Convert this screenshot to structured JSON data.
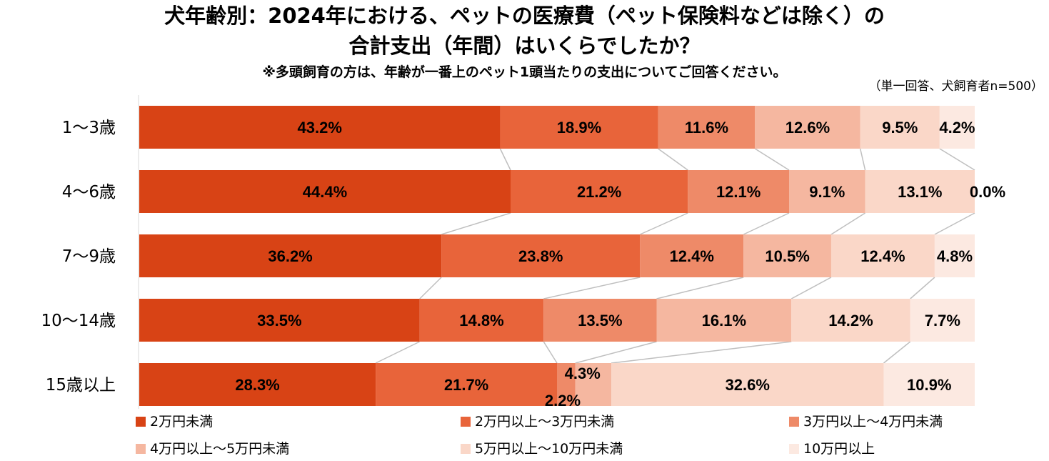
{
  "title_line1": "犬年齢別：2024年における、ペットの医療費（ペット保険料などは除く）の",
  "title_line2": "合計支出（年間）はいくらでしたか？",
  "subtitle": "※多頭飼育の方は、年齢が一番上のペット1頭当たりの支出についてご回答ください。",
  "note": "（単一回答、犬飼育者n=500）",
  "chart_data": {
    "type": "bar",
    "orientation": "horizontal",
    "stacked": "100%",
    "categories": [
      "1～3歳",
      "4～6歳",
      "7～9歳",
      "10～14歳",
      "15歳以上"
    ],
    "series": [
      {
        "name": "2万円未満",
        "color": "#D84315",
        "values": [
          43.2,
          44.4,
          36.2,
          33.5,
          28.3
        ]
      },
      {
        "name": "2万円以上～3万円未満",
        "color": "#E8643A",
        "values": [
          18.9,
          21.2,
          23.8,
          14.8,
          21.7
        ]
      },
      {
        "name": "3万円以上～4万円未満",
        "color": "#EE8A68",
        "values": [
          11.6,
          12.1,
          12.4,
          13.5,
          2.2
        ]
      },
      {
        "name": "4万円以上～5万円未満",
        "color": "#F5B7A0",
        "values": [
          12.6,
          9.1,
          10.5,
          16.1,
          4.3
        ]
      },
      {
        "name": "5万円以上～10万円未満",
        "color": "#FAD7C8",
        "values": [
          9.5,
          13.1,
          12.4,
          14.2,
          32.6
        ]
      },
      {
        "name": "10万円以上",
        "color": "#FCE9E1",
        "values": [
          4.2,
          0.0,
          4.8,
          7.7,
          10.9
        ]
      }
    ],
    "data_labels": [
      [
        "43.2%",
        "18.9%",
        "11.6%",
        "12.6%",
        "9.5%",
        "4.2%"
      ],
      [
        "44.4%",
        "21.2%",
        "12.1%",
        "9.1%",
        "13.1%",
        "0.0%"
      ],
      [
        "36.2%",
        "23.8%",
        "12.4%",
        "10.5%",
        "12.4%",
        "4.8%"
      ],
      [
        "33.5%",
        "14.8%",
        "13.5%",
        "16.1%",
        "14.2%",
        "7.7%"
      ],
      [
        "28.3%",
        "21.7%",
        "2.2%",
        "4.3%",
        "32.6%",
        "10.9%"
      ]
    ],
    "xlim": [
      0,
      100
    ],
    "legend_position": "bottom",
    "series_connector_lines": true
  }
}
